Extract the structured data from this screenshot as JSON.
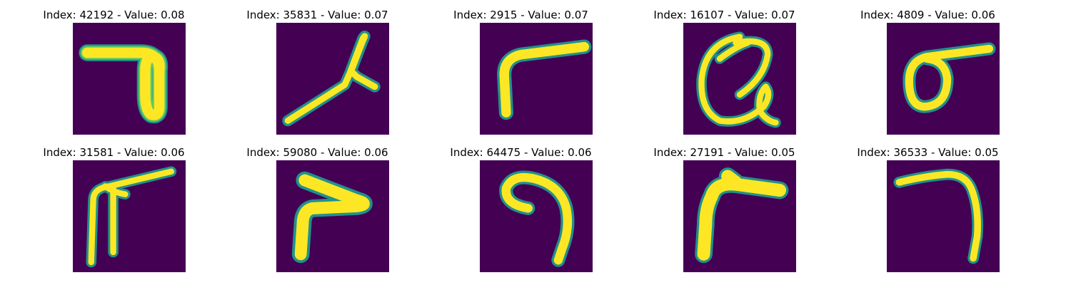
{
  "panels": [
    {
      "title": "Index: 42192 - Value: 0.08"
    },
    {
      "title": "Index: 35831 - Value: 0.07"
    },
    {
      "title": "Index: 2915 - Value: 0.07"
    },
    {
      "title": "Index: 16107 - Value: 0.07"
    },
    {
      "title": "Index: 4809 - Value: 0.06"
    },
    {
      "title": "Index: 31581 - Value: 0.06"
    },
    {
      "title": "Index: 59080 - Value: 0.06"
    },
    {
      "title": "Index: 64475 - Value: 0.06"
    },
    {
      "title": "Index: 27191 - Value: 0.05"
    },
    {
      "title": "Index: 36533 - Value: 0.05"
    }
  ],
  "colors": {
    "background": "#440154",
    "edge": "#21918c",
    "mid": "#5ec962",
    "stroke": "#fde725"
  }
}
